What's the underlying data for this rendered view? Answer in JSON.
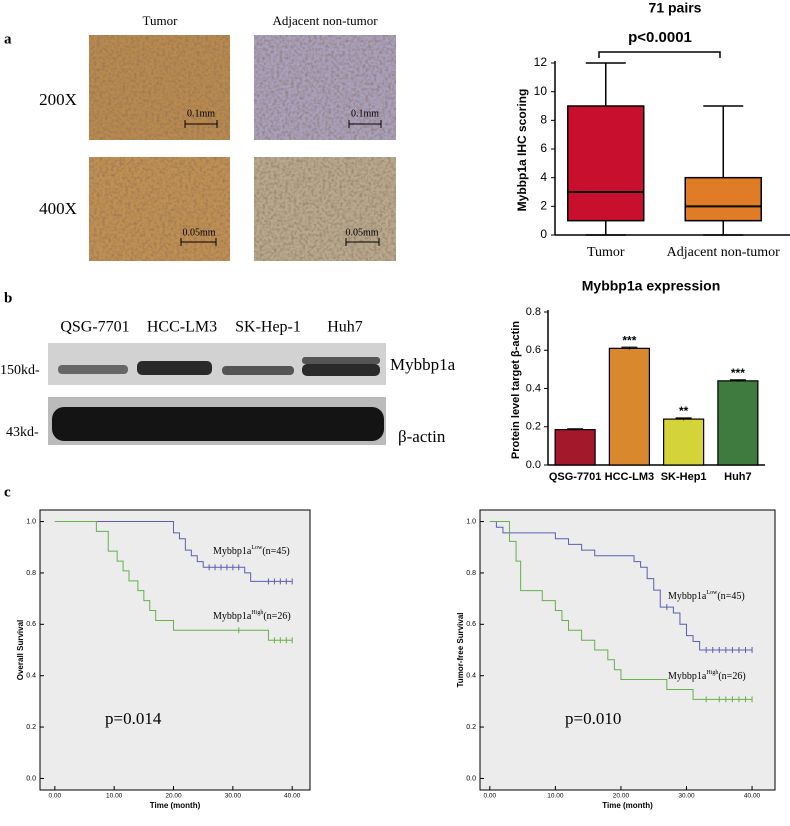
{
  "panel_labels": [
    "a",
    "b",
    "c"
  ],
  "ihc": {
    "columns": [
      "Tumor",
      "Adjacent non-tumor"
    ],
    "rows": [
      "200X",
      "400X"
    ],
    "scale_bars": [
      [
        "0.1mm",
        "0.1mm"
      ],
      [
        "0.05mm",
        "0.05mm"
      ]
    ]
  },
  "blot": {
    "lanes": [
      "QSG-7701",
      "HCC-LM3",
      "SK-Hep-1",
      "Huh7"
    ],
    "markers": [
      "150kd-",
      "43kd-"
    ],
    "proteins": [
      "Mybbp1a",
      "β-actin"
    ]
  },
  "chart_data": [
    {
      "type": "box",
      "title": "71 pairs",
      "annotation": "p<0.0001",
      "ylabel": "Mybbp1a IHC scoring",
      "categories": [
        "Tumor",
        "Adjacent non-tumor"
      ],
      "boxes": [
        {
          "min": 0,
          "q1": 1,
          "median": 3,
          "q3": 9,
          "max": 12
        },
        {
          "min": 0,
          "q1": 1,
          "median": 2,
          "q3": 4,
          "max": 9
        }
      ],
      "colors": [
        "#c8102e",
        "#e07b26"
      ],
      "ylim": [
        0,
        12
      ],
      "yticks": [
        0,
        2,
        4,
        6,
        8,
        10,
        12
      ]
    },
    {
      "type": "bar",
      "title": "Mybbp1a expression",
      "ylabel": "Protein level target β-actin",
      "categories": [
        "QSG-7701",
        "HCC-LM3",
        "SK-Hep1",
        "Huh7"
      ],
      "values": [
        0.185,
        0.61,
        0.24,
        0.44
      ],
      "errors": [
        0.004,
        0.006,
        0.006,
        0.005
      ],
      "significance": [
        null,
        "***",
        "**",
        "***"
      ],
      "colors": [
        "#a3192b",
        "#d9882e",
        "#d4d43a",
        "#3f7a3f"
      ],
      "ylim": [
        0,
        0.8
      ],
      "yticks": [
        {
          "value": 0,
          "label": "0.0"
        },
        0.2,
        0.4,
        0.6,
        0.8
      ]
    },
    {
      "type": "km",
      "ylabel": "Overall Survival",
      "xlabel": "Time (month)",
      "annotation": "p=0.014",
      "xlim": [
        -2.5,
        43
      ],
      "ylim": [
        -0.045,
        1.045
      ],
      "xticks": [
        {
          "value": 0,
          "label": "0.00"
        },
        {
          "value": 10,
          "label": "10.00"
        },
        {
          "value": 20,
          "label": "20.00"
        },
        {
          "value": 30,
          "label": "30.00"
        },
        {
          "value": 40,
          "label": "40.00"
        }
      ],
      "yticks": [
        {
          "value": 0,
          "label": "0.0"
        },
        0.2,
        0.4,
        0.6,
        0.8,
        {
          "value": 1,
          "label": "1.0"
        }
      ],
      "series": [
        {
          "label": {
            "base": "Mybbp1a",
            "sup": "Low",
            "rest": "(n=45)"
          },
          "color": "#5a5fb0",
          "x": [
            0,
            20,
            21,
            22,
            23,
            24,
            25,
            32,
            33,
            40
          ],
          "values": [
            1,
            0.956,
            0.933,
            0.889,
            0.867,
            0.844,
            0.822,
            0.8,
            0.767,
            0.767
          ],
          "censored": {
            "x": [
              26,
              27,
              28,
              29,
              30,
              31,
              36,
              37,
              38,
              39,
              40
            ],
            "values": [
              0.822,
              0.822,
              0.822,
              0.822,
              0.822,
              0.822,
              0.767,
              0.767,
              0.767,
              0.767,
              0.767
            ]
          }
        },
        {
          "label": {
            "base": "Mybbp1a",
            "sup": "High",
            "rest": "(n=26)"
          },
          "color": "#66b04a",
          "x": [
            0,
            7,
            9,
            10.5,
            11.5,
            12.5,
            14,
            15,
            16,
            17,
            20,
            36,
            40
          ],
          "values": [
            1,
            0.962,
            0.885,
            0.846,
            0.808,
            0.769,
            0.731,
            0.692,
            0.654,
            0.615,
            0.577,
            0.538,
            0.538
          ],
          "censored": {
            "x": [
              31,
              37,
              38,
              39,
              40
            ],
            "values": [
              0.577,
              0.538,
              0.538,
              0.538,
              0.538
            ]
          }
        }
      ]
    },
    {
      "type": "km",
      "ylabel": "Tumor-free Survival",
      "xlabel": "Time (month)",
      "annotation": "p=0.010",
      "xlim": [
        -1.5,
        43.5
      ],
      "ylim": [
        -0.045,
        1.045
      ],
      "xticks": [
        {
          "value": 0,
          "label": "0.00"
        },
        {
          "value": 10,
          "label": "10.00"
        },
        {
          "value": 20,
          "label": "20.00"
        },
        {
          "value": 30,
          "label": "30.00"
        },
        {
          "value": 40,
          "label": "40.00"
        }
      ],
      "yticks": [
        {
          "value": 0,
          "label": "0.0"
        },
        0.2,
        0.4,
        0.6,
        0.8,
        {
          "value": 1,
          "label": "1.0"
        }
      ],
      "series": [
        {
          "label": {
            "base": "Mybbp1a",
            "sup": "Low",
            "rest": "(n=45)"
          },
          "color": "#5a5fb0",
          "x": [
            0,
            1,
            2,
            10,
            12,
            14,
            16,
            22,
            23,
            24,
            25,
            26,
            28,
            29,
            30,
            31,
            32,
            40
          ],
          "values": [
            1,
            0.978,
            0.956,
            0.933,
            0.911,
            0.889,
            0.867,
            0.844,
            0.822,
            0.778,
            0.733,
            0.667,
            0.644,
            0.6,
            0.556,
            0.533,
            0.5,
            0.5
          ],
          "censored": {
            "x": [
              27,
              33,
              34,
              35,
              36,
              37,
              38,
              39,
              40
            ],
            "values": [
              0.667,
              0.5,
              0.5,
              0.5,
              0.5,
              0.5,
              0.5,
              0.5,
              0.5
            ]
          }
        },
        {
          "label": {
            "base": "Mybbp1a",
            "sup": "High",
            "rest": "(n=26)"
          },
          "color": "#66b04a",
          "x": [
            0,
            3,
            4,
            4.7,
            8,
            10,
            11,
            12,
            14,
            16,
            18,
            19,
            20,
            27,
            31,
            40
          ],
          "values": [
            1,
            0.923,
            0.846,
            0.731,
            0.692,
            0.654,
            0.615,
            0.577,
            0.538,
            0.5,
            0.462,
            0.423,
            0.385,
            0.346,
            0.308,
            0.308
          ],
          "censored": {
            "x": [
              33,
              35,
              36,
              37,
              38,
              39,
              40
            ],
            "values": [
              0.308,
              0.308,
              0.308,
              0.308,
              0.308,
              0.308,
              0.308
            ]
          }
        }
      ]
    }
  ]
}
